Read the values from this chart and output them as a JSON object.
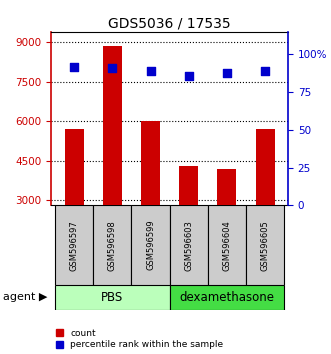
{
  "title": "GDS5036 / 17535",
  "samples": [
    "GSM596597",
    "GSM596598",
    "GSM596599",
    "GSM596603",
    "GSM596604",
    "GSM596605"
  ],
  "counts": [
    5700,
    8850,
    6000,
    4300,
    4200,
    5700
  ],
  "percentiles": [
    92,
    91,
    89,
    86,
    88,
    89
  ],
  "pbs_count": 3,
  "dexa_count": 3,
  "pbs_label": "PBS",
  "dexa_label": "dexamethasone",
  "agent_label": "agent",
  "count_label": "count",
  "percentile_label": "percentile rank within the sample",
  "ylim_left": [
    2800,
    9400
  ],
  "yticks_left": [
    3000,
    4500,
    6000,
    7500,
    9000
  ],
  "ylim_right": [
    0,
    115
  ],
  "yticks_right": [
    0,
    25,
    50,
    75,
    100
  ],
  "ytick_labels_right": [
    "0",
    "25",
    "50",
    "75",
    "100%"
  ],
  "bar_color": "#cc0000",
  "dot_color": "#0000cc",
  "pbs_color_light": "#bbffbb",
  "dexa_color": "#44dd44",
  "ylabel_left_color": "#cc0000",
  "ylabel_right_color": "#0000cc",
  "bar_width": 0.5,
  "dot_size": 40,
  "background_color": "#ffffff"
}
